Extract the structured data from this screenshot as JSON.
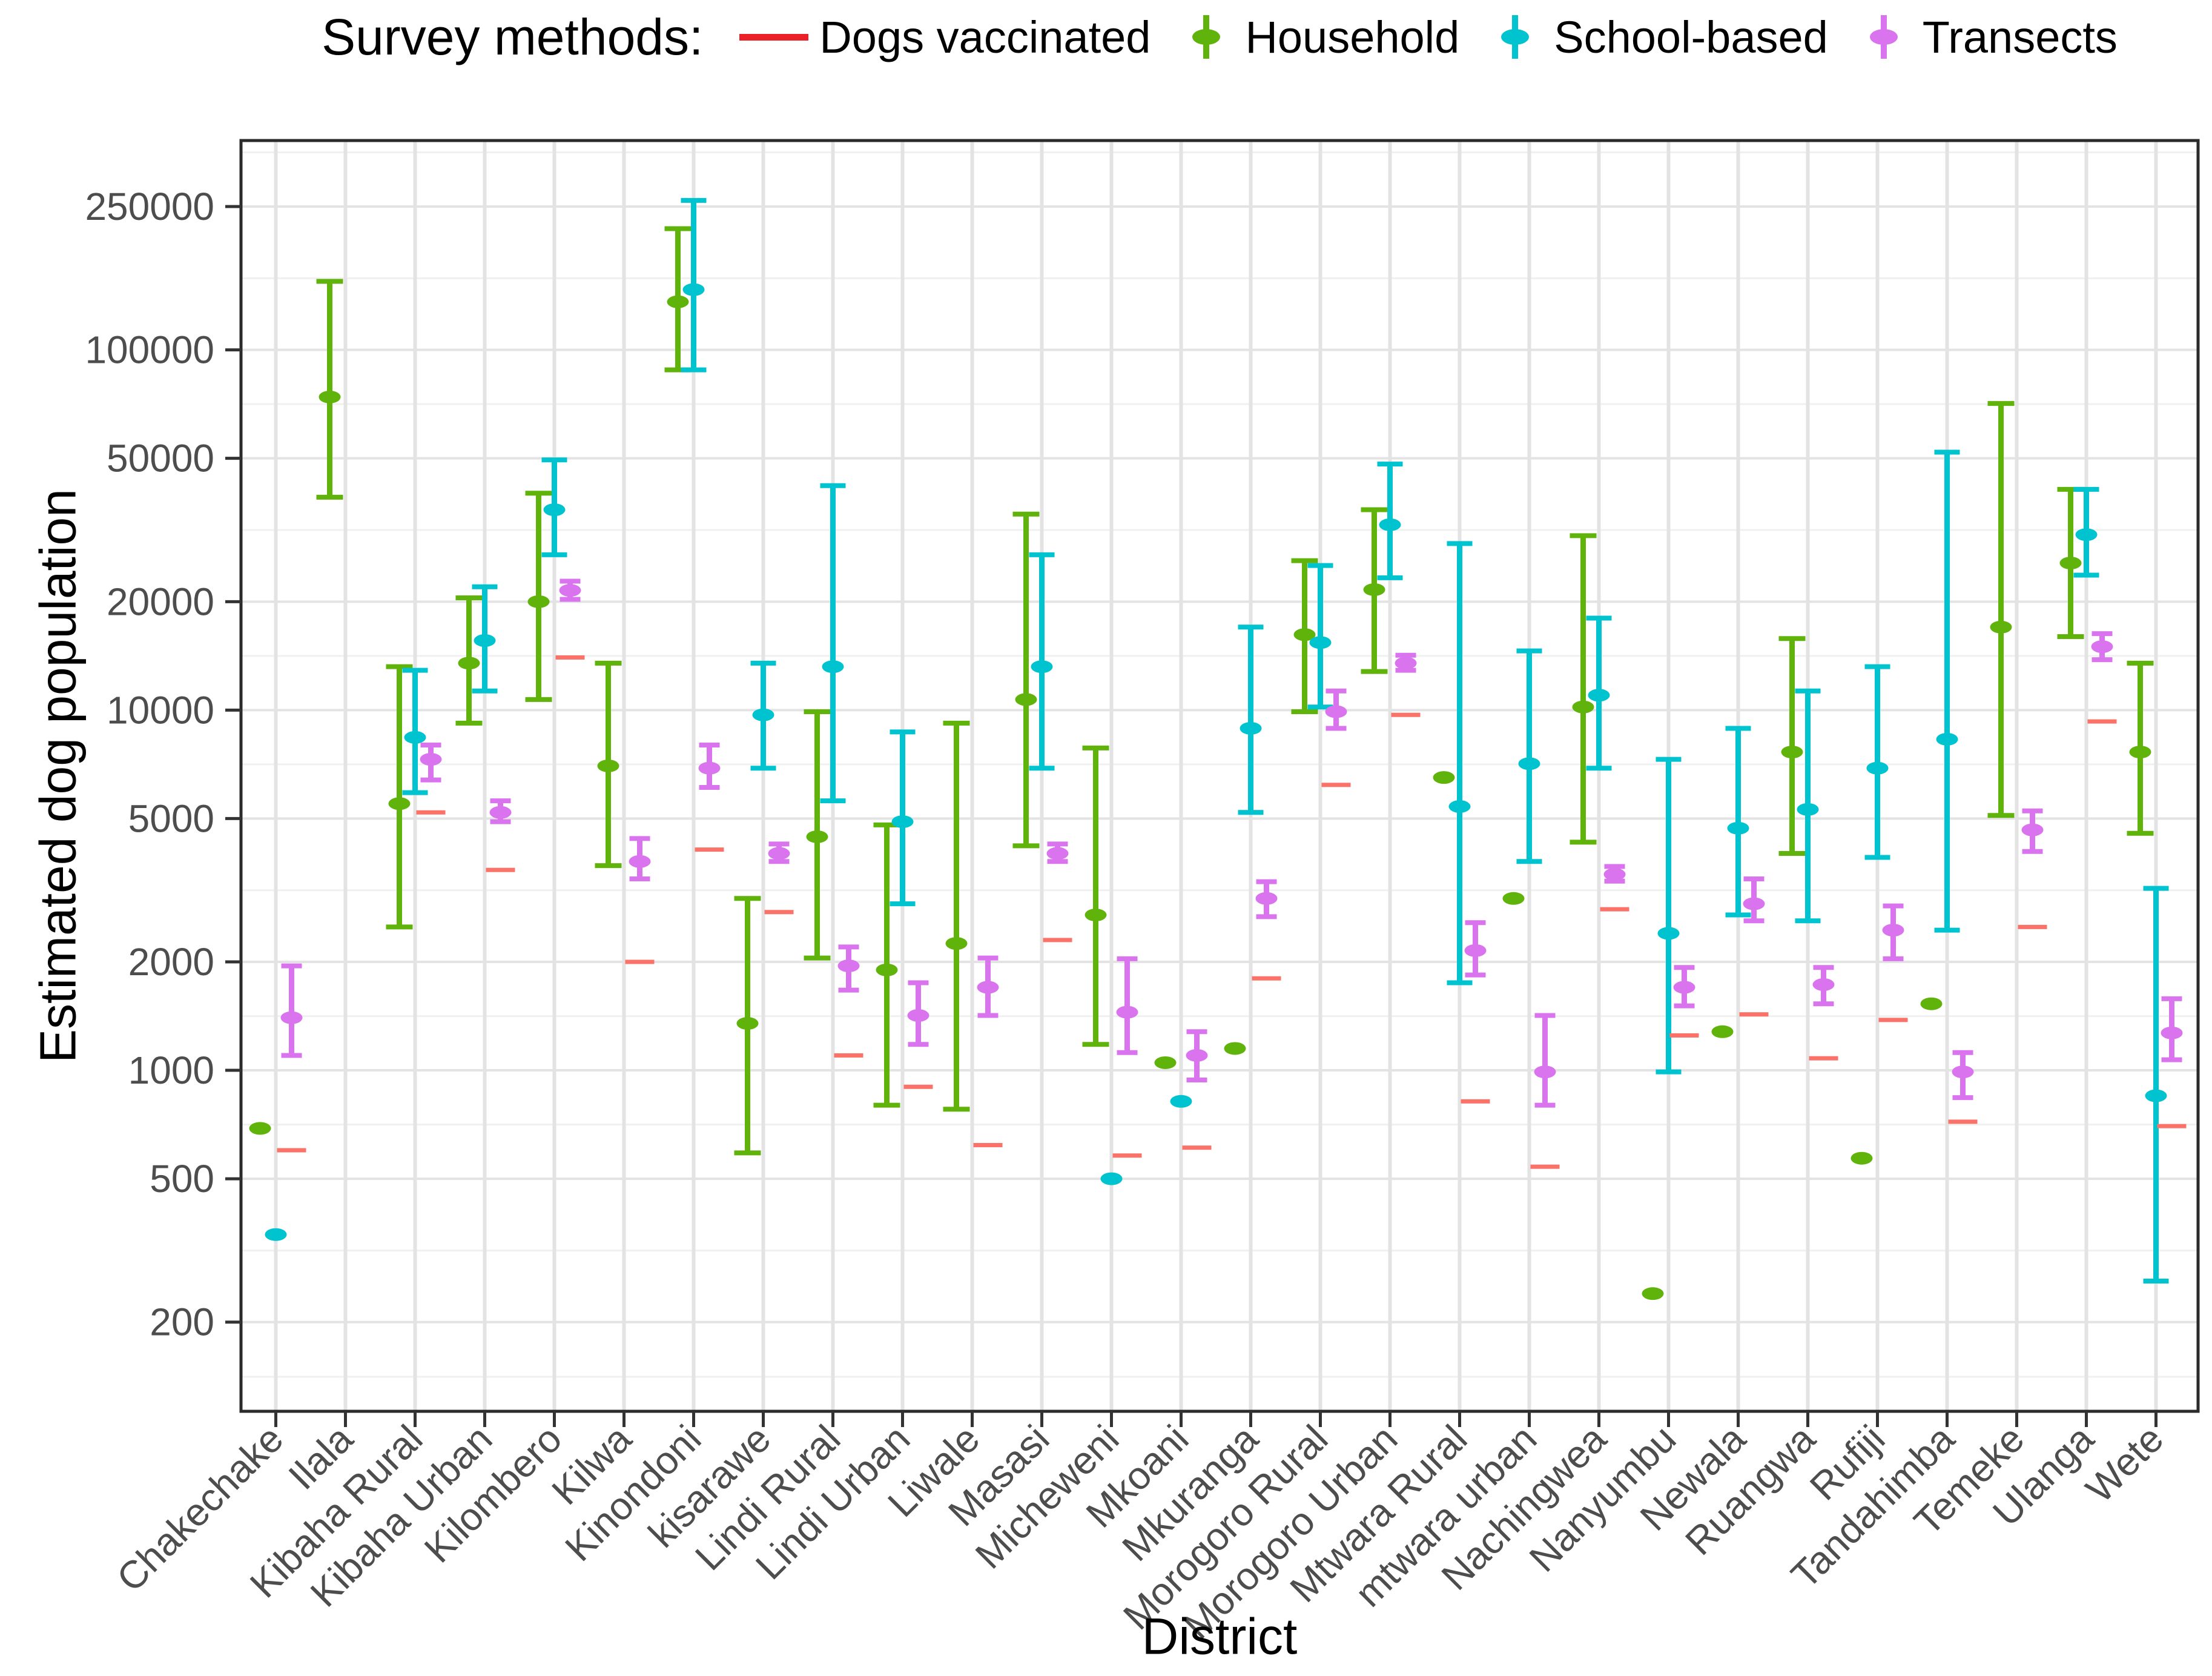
{
  "chart_data": {
    "type": "errorbar",
    "xlabel": "District",
    "ylabel": "Estimated dog population",
    "y_scale": "log10",
    "y_ticks": [
      250000,
      100000,
      50000,
      20000,
      10000,
      5000,
      2000,
      1000,
      500,
      200
    ],
    "y_minor_gridlines": [
      353553,
      158114,
      70711,
      31623,
      14142,
      7071,
      3162,
      1414,
      707,
      316,
      141
    ],
    "ylim": [
      115,
      380000
    ],
    "grid": "on",
    "legend_position": "top",
    "legend": {
      "title": "Survey methods:",
      "items": [
        {
          "label": "Dogs vaccinated",
          "color": "#EB2127",
          "glyph": "line"
        },
        {
          "label": "Household",
          "color": "#5FB30A",
          "glyph": "point"
        },
        {
          "label": "School-based",
          "color": "#00C3D0",
          "glyph": "point"
        },
        {
          "label": "Transects",
          "color": "#DA74EE",
          "glyph": "point"
        }
      ]
    },
    "series_style": {
      "vaccinated": {
        "color": "#FA7268",
        "offset": 26
      },
      "household": {
        "color": "#5FB30A",
        "offset": -26
      },
      "school": {
        "color": "#00C3D0",
        "offset": 0
      },
      "transects": {
        "color": "#DA74EE",
        "offset": 26
      }
    },
    "districts": [
      {
        "name": "Chakechake",
        "vaccinated": 600,
        "household": {
          "v": 690
        },
        "school": {
          "v": 350
        },
        "transects": {
          "v": 1400,
          "lo": 1100,
          "hi": 1950
        }
      },
      {
        "name": "Ilala",
        "vaccinated": null,
        "household": {
          "v": 74000,
          "lo": 39000,
          "hi": 155000
        },
        "school": null,
        "transects": null
      },
      {
        "name": "Kibaha Rural",
        "vaccinated": 5200,
        "household": {
          "v": 5500,
          "lo": 2500,
          "hi": 13200
        },
        "school": {
          "v": 8400,
          "lo": 5900,
          "hi": 12900
        },
        "transects": {
          "v": 7300,
          "lo": 6400,
          "hi": 8000
        }
      },
      {
        "name": "Kibaha Urban",
        "vaccinated": 3600,
        "household": {
          "v": 13500,
          "lo": 9200,
          "hi": 20500
        },
        "school": {
          "v": 15600,
          "lo": 11300,
          "hi": 22000
        },
        "transects": {
          "v": 5200,
          "lo": 4900,
          "hi": 5600
        }
      },
      {
        "name": "Kilombero",
        "vaccinated": 14000,
        "household": {
          "v": 20000,
          "lo": 10700,
          "hi": 40000
        },
        "school": {
          "v": 36000,
          "lo": 27000,
          "hi": 49500
        },
        "transects": {
          "v": 21500,
          "lo": 20300,
          "hi": 22800
        }
      },
      {
        "name": "Kilwa",
        "vaccinated": 2000,
        "household": {
          "v": 7000,
          "lo": 3700,
          "hi": 13500
        },
        "school": null,
        "transects": {
          "v": 3800,
          "lo": 3400,
          "hi": 4400
        }
      },
      {
        "name": "Kinondoni",
        "vaccinated": 4100,
        "household": {
          "v": 136000,
          "lo": 88000,
          "hi": 217000
        },
        "school": {
          "v": 147000,
          "lo": 88000,
          "hi": 260000
        },
        "transects": {
          "v": 6900,
          "lo": 6100,
          "hi": 8000
        }
      },
      {
        "name": "kisarawe",
        "vaccinated": 2750,
        "household": {
          "v": 1350,
          "lo": 590,
          "hi": 3000
        },
        "school": {
          "v": 9700,
          "lo": 6900,
          "hi": 13500
        },
        "transects": {
          "v": 4000,
          "lo": 3800,
          "hi": 4250
        }
      },
      {
        "name": "Lindi Rural",
        "vaccinated": 1100,
        "household": {
          "v": 4450,
          "lo": 2050,
          "hi": 9900
        },
        "school": {
          "v": 13200,
          "lo": 5600,
          "hi": 42000
        },
        "transects": {
          "v": 1950,
          "lo": 1670,
          "hi": 2200
        }
      },
      {
        "name": "Lindi Urban",
        "vaccinated": 900,
        "household": {
          "v": 1900,
          "lo": 800,
          "hi": 4800
        },
        "school": {
          "v": 4900,
          "lo": 2900,
          "hi": 8700
        },
        "transects": {
          "v": 1420,
          "lo": 1180,
          "hi": 1750
        }
      },
      {
        "name": "Liwale",
        "vaccinated": 620,
        "household": {
          "v": 2250,
          "lo": 780,
          "hi": 9200
        },
        "school": null,
        "transects": {
          "v": 1700,
          "lo": 1420,
          "hi": 2050
        }
      },
      {
        "name": "Masasi",
        "vaccinated": 2300,
        "household": {
          "v": 10700,
          "lo": 4200,
          "hi": 35000
        },
        "school": {
          "v": 13200,
          "lo": 6900,
          "hi": 27000
        },
        "transects": {
          "v": 4000,
          "lo": 3800,
          "hi": 4250
        }
      },
      {
        "name": "Micheweni",
        "vaccinated": 580,
        "household": {
          "v": 2700,
          "lo": 1180,
          "hi": 7850
        },
        "school": {
          "v": 500
        },
        "transects": {
          "v": 1450,
          "lo": 1120,
          "hi": 2040
        }
      },
      {
        "name": "Mkoani",
        "vaccinated": 610,
        "household": {
          "v": 1050
        },
        "school": {
          "v": 820
        },
        "transects": {
          "v": 1100,
          "lo": 940,
          "hi": 1280
        }
      },
      {
        "name": "Mkuranga",
        "vaccinated": 1800,
        "household": {
          "v": 1150
        },
        "school": {
          "v": 8900,
          "lo": 5200,
          "hi": 17000
        },
        "transects": {
          "v": 3000,
          "lo": 2670,
          "hi": 3340
        }
      },
      {
        "name": "Morogoro Rural",
        "vaccinated": 6200,
        "household": {
          "v": 16200,
          "lo": 9900,
          "hi": 26000
        },
        "school": {
          "v": 15400,
          "lo": 10200,
          "hi": 25200
        },
        "transects": {
          "v": 9900,
          "lo": 8900,
          "hi": 11300
        }
      },
      {
        "name": "Morogoro Urban",
        "vaccinated": 9700,
        "household": {
          "v": 21600,
          "lo": 12800,
          "hi": 36000
        },
        "school": {
          "v": 32700,
          "lo": 23300,
          "hi": 48200
        },
        "transects": {
          "v": 13500,
          "lo": 12900,
          "hi": 14200
        }
      },
      {
        "name": "Mtwara Rural",
        "vaccinated": 820,
        "household": {
          "v": 6500
        },
        "school": {
          "v": 5400,
          "lo": 1750,
          "hi": 29000
        },
        "transects": {
          "v": 2150,
          "lo": 1840,
          "hi": 2570
        }
      },
      {
        "name": "mtwara urban",
        "vaccinated": 540,
        "household": {
          "v": 3000
        },
        "school": {
          "v": 7100,
          "lo": 3800,
          "hi": 14600
        },
        "transects": {
          "v": 990,
          "lo": 800,
          "hi": 1420
        }
      },
      {
        "name": "Nachingwea",
        "vaccinated": 2800,
        "household": {
          "v": 10200,
          "lo": 4300,
          "hi": 30500
        },
        "school": {
          "v": 11000,
          "lo": 6900,
          "hi": 18000
        },
        "transects": {
          "v": 3500,
          "lo": 3350,
          "hi": 3680
        }
      },
      {
        "name": "Nanyumbu",
        "vaccinated": 1250,
        "household": {
          "v": 240
        },
        "school": {
          "v": 2400,
          "lo": 990,
          "hi": 7300
        },
        "transects": {
          "v": 1700,
          "lo": 1510,
          "hi": 1930
        }
      },
      {
        "name": "Newala",
        "vaccinated": 1430,
        "household": {
          "v": 1280
        },
        "school": {
          "v": 4700,
          "lo": 2700,
          "hi": 8900
        },
        "transects": {
          "v": 2900,
          "lo": 2600,
          "hi": 3400
        }
      },
      {
        "name": "Ruangwa",
        "vaccinated": 1080,
        "household": {
          "v": 7650,
          "lo": 4000,
          "hi": 15800
        },
        "school": {
          "v": 5300,
          "lo": 2600,
          "hi": 11300
        },
        "transects": {
          "v": 1730,
          "lo": 1530,
          "hi": 1930
        }
      },
      {
        "name": "Rufiji",
        "vaccinated": 1380,
        "household": {
          "v": 570
        },
        "school": {
          "v": 6900,
          "lo": 3900,
          "hi": 13200
        },
        "transects": {
          "v": 2450,
          "lo": 2040,
          "hi": 2860
        }
      },
      {
        "name": "Tandahimba",
        "vaccinated": 720,
        "household": {
          "v": 1530
        },
        "school": {
          "v": 8300,
          "lo": 2450,
          "hi": 52000
        },
        "transects": {
          "v": 990,
          "lo": 840,
          "hi": 1120
        }
      },
      {
        "name": "Temeke",
        "vaccinated": 2500,
        "household": {
          "v": 17000,
          "lo": 5100,
          "hi": 71000
        },
        "school": null,
        "transects": {
          "v": 4650,
          "lo": 4050,
          "hi": 5250
        }
      },
      {
        "name": "Ulanga",
        "vaccinated": 9300,
        "household": {
          "v": 25600,
          "lo": 16000,
          "hi": 41000
        },
        "school": {
          "v": 30700,
          "lo": 23700,
          "hi": 41000
        },
        "transects": {
          "v": 15000,
          "lo": 13800,
          "hi": 16300
        }
      },
      {
        "name": "Wete",
        "vaccinated": 700,
        "household": {
          "v": 7650,
          "lo": 4550,
          "hi": 13500
        },
        "school": {
          "v": 850,
          "lo": 260,
          "hi": 3200
        },
        "transects": {
          "v": 1270,
          "lo": 1070,
          "hi": 1580
        }
      }
    ]
  },
  "panel": {
    "grid_major_color": "#e3e3e3",
    "grid_minor_color": "#f0f0f0",
    "border_color": "#2b2b2b",
    "tick_color": "#333333",
    "label_color": "#4d4d4d"
  }
}
